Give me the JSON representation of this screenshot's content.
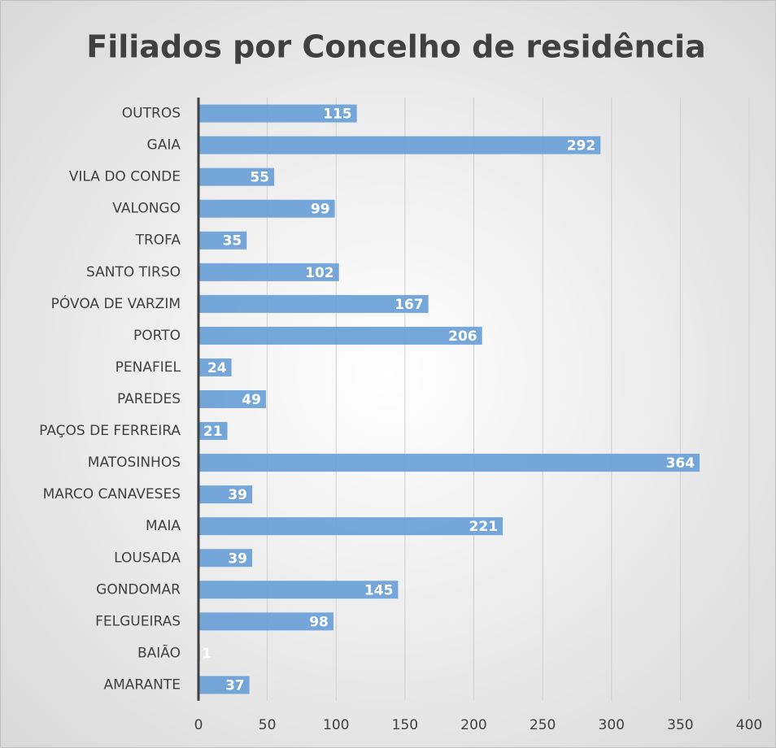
{
  "chart_data": {
    "type": "bar",
    "orientation": "horizontal",
    "title": "Filiados por Concelho de residência",
    "categories": [
      "AMARANTE",
      "BAIÃO",
      "FELGUEIRAS",
      "GONDOMAR",
      "LOUSADA",
      "MAIA",
      "MARCO CANAVESES",
      "MATOSINHOS",
      "PAÇOS DE FERREIRA",
      "PAREDES",
      "PENAFIEL",
      "PORTO",
      "PÓVOA DE VARZIM",
      "SANTO TIRSO",
      "TROFA",
      "VALONGO",
      "VILA DO CONDE",
      "GAIA",
      "OUTROS"
    ],
    "values": [
      37,
      1,
      98,
      145,
      39,
      221,
      39,
      364,
      21,
      49,
      24,
      206,
      167,
      102,
      35,
      99,
      55,
      292,
      115
    ],
    "color": "#6a9fd8",
    "xlim": [
      0,
      400
    ],
    "xticks": [
      0,
      50,
      100,
      150,
      200,
      250,
      300,
      350,
      400
    ],
    "grid": true
  }
}
